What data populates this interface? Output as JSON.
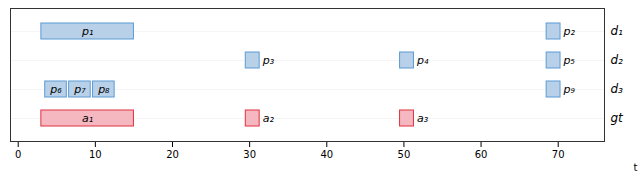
{
  "chart_data": {
    "type": "timeline",
    "xlabel": "t",
    "xlim": [
      -1,
      76
    ],
    "xticks": [
      0,
      10,
      20,
      30,
      40,
      50,
      60,
      70
    ],
    "grid": true,
    "rows": [
      {
        "name": "d₁",
        "segments": [
          {
            "start": 3,
            "end": 15,
            "label": "p₁",
            "color": "#b8d0e8",
            "edgecolor": "#5b9bd5"
          },
          {
            "start": 68.5,
            "end": 70.3,
            "label": "p₂",
            "color": "#b8d0e8",
            "edgecolor": "#5b9bd5"
          }
        ]
      },
      {
        "name": "d₂",
        "segments": [
          {
            "start": 29.5,
            "end": 31.3,
            "label": "p₃",
            "color": "#b8d0e8",
            "edgecolor": "#5b9bd5"
          },
          {
            "start": 49.5,
            "end": 51.3,
            "label": "p₄",
            "color": "#b8d0e8",
            "edgecolor": "#5b9bd5"
          },
          {
            "start": 68.5,
            "end": 70.3,
            "label": "p₅",
            "color": "#b8d0e8",
            "edgecolor": "#5b9bd5"
          }
        ]
      },
      {
        "name": "d₃",
        "segments": [
          {
            "start": 3.5,
            "end": 6.3,
            "label": "p₆",
            "color": "#b8d0e8",
            "edgecolor": "#5b9bd5"
          },
          {
            "start": 6.6,
            "end": 9.4,
            "label": "p₇",
            "color": "#b8d0e8",
            "edgecolor": "#5b9bd5"
          },
          {
            "start": 9.7,
            "end": 12.5,
            "label": "p₈",
            "color": "#b8d0e8",
            "edgecolor": "#5b9bd5"
          },
          {
            "start": 68.5,
            "end": 70.3,
            "label": "p₉",
            "color": "#b8d0e8",
            "edgecolor": "#5b9bd5"
          }
        ]
      },
      {
        "name": "gt",
        "segments": [
          {
            "start": 3,
            "end": 15,
            "label": "a₁",
            "color": "#f5b8c0",
            "edgecolor": "#e03040"
          },
          {
            "start": 29.5,
            "end": 31.3,
            "label": "a₂",
            "color": "#f5b8c0",
            "edgecolor": "#e03040"
          },
          {
            "start": 49.5,
            "end": 51.3,
            "label": "a₃",
            "color": "#f5b8c0",
            "edgecolor": "#e03040"
          }
        ]
      }
    ]
  }
}
